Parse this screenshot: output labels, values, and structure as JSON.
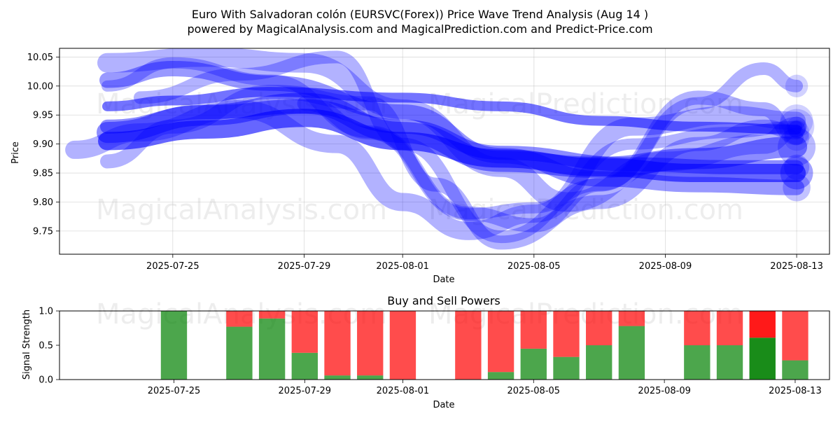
{
  "title_line1": "Euro With Salvadoran colón (EURSVC(Forex)) Price Wave Trend Analysis (Aug 14 )",
  "title_line2": "powered by MagicalAnalysis.com and MagicalPrediction.com and Predict-Price.com",
  "watermarks": [
    "MagicalAnalysis.com",
    "MagicalPrediction.com"
  ],
  "colors": {
    "wave": "#0000ff",
    "buy": "#008000",
    "sell": "#ff0000",
    "grid": "#b0b0b0"
  },
  "chart_data": [
    {
      "type": "line",
      "title": "",
      "xlabel": "Date",
      "ylabel": "Price",
      "xlim": [
        "2025-07-22",
        "2025-08-13"
      ],
      "ylim": [
        9.71,
        10.065
      ],
      "x_ticks": [
        "2025-07-25",
        "2025-07-29",
        "2025-08-01",
        "2025-08-05",
        "2025-08-09",
        "2025-08-13"
      ],
      "y_ticks": [
        9.75,
        9.8,
        9.85,
        9.9,
        9.95,
        10.0,
        10.05
      ],
      "grid": true,
      "series": [
        {
          "x": [
            "2025-07-23",
            "2025-07-25",
            "2025-07-28",
            "2025-08-01",
            "2025-08-04",
            "2025-08-07",
            "2025-08-10",
            "2025-08-13"
          ],
          "values": [
            9.965,
            9.975,
            9.99,
            9.98,
            9.965,
            9.94,
            9.93,
            9.925
          ],
          "width": 14,
          "opacity": 0.55
        },
        {
          "x": [
            "2025-07-23",
            "2025-07-26",
            "2025-07-29",
            "2025-08-01",
            "2025-08-04",
            "2025-08-07",
            "2025-08-10",
            "2025-08-13"
          ],
          "values": [
            9.905,
            9.925,
            9.945,
            9.905,
            9.875,
            9.86,
            9.85,
            9.85
          ],
          "width": 26,
          "opacity": 0.6
        },
        {
          "x": [
            "2025-07-23",
            "2025-07-26",
            "2025-07-29",
            "2025-08-01",
            "2025-08-04",
            "2025-08-08",
            "2025-08-11",
            "2025-08-13"
          ],
          "values": [
            9.93,
            9.955,
            9.965,
            9.93,
            9.885,
            9.865,
            9.86,
            9.86
          ],
          "width": 20,
          "opacity": 0.45
        },
        {
          "x": [
            "2025-07-23",
            "2025-07-25",
            "2025-07-28",
            "2025-08-01",
            "2025-08-04",
            "2025-08-07",
            "2025-08-10",
            "2025-08-13"
          ],
          "values": [
            10.01,
            10.03,
            10.005,
            9.955,
            9.88,
            9.84,
            9.83,
            9.825
          ],
          "width": 22,
          "opacity": 0.4
        },
        {
          "x": [
            "2025-07-23",
            "2025-07-26",
            "2025-07-29",
            "2025-08-01",
            "2025-08-04",
            "2025-08-07",
            "2025-08-10",
            "2025-08-13"
          ],
          "values": [
            9.92,
            9.95,
            9.97,
            9.92,
            9.87,
            9.86,
            9.875,
            9.895
          ],
          "width": 30,
          "opacity": 0.45
        },
        {
          "x": [
            "2025-07-23",
            "2025-07-25",
            "2025-07-28",
            "2025-07-31",
            "2025-08-03",
            "2025-08-05",
            "2025-08-08",
            "2025-08-11",
            "2025-08-13"
          ],
          "values": [
            10.0,
            10.04,
            10.01,
            9.92,
            9.78,
            9.79,
            9.9,
            9.92,
            9.93
          ],
          "width": 16,
          "opacity": 0.3
        },
        {
          "x": [
            "2025-07-23",
            "2025-07-26",
            "2025-07-29",
            "2025-08-01",
            "2025-08-04",
            "2025-08-06",
            "2025-08-09",
            "2025-08-12",
            "2025-08-13"
          ],
          "values": [
            10.04,
            10.05,
            10.04,
            9.96,
            9.86,
            9.8,
            9.87,
            9.9,
            9.93
          ],
          "width": 28,
          "opacity": 0.3
        },
        {
          "x": [
            "2025-07-22",
            "2025-07-24",
            "2025-07-27",
            "2025-07-30",
            "2025-08-01",
            "2025-08-03",
            "2025-08-05",
            "2025-08-08",
            "2025-08-11",
            "2025-08-13"
          ],
          "values": [
            9.89,
            9.92,
            9.96,
            9.9,
            9.8,
            9.75,
            9.78,
            9.93,
            9.95,
            9.94
          ],
          "width": 26,
          "opacity": 0.3
        },
        {
          "x": [
            "2025-07-23",
            "2025-07-25",
            "2025-07-28",
            "2025-07-31",
            "2025-08-02",
            "2025-08-04",
            "2025-08-07",
            "2025-08-10",
            "2025-08-12",
            "2025-08-13"
          ],
          "values": [
            9.87,
            9.93,
            9.99,
            9.97,
            9.83,
            9.73,
            9.8,
            9.9,
            9.93,
            9.92
          ],
          "width": 20,
          "opacity": 0.3
        },
        {
          "x": [
            "2025-07-24",
            "2025-07-27",
            "2025-07-30",
            "2025-08-01",
            "2025-08-04",
            "2025-08-07",
            "2025-08-10",
            "2025-08-12",
            "2025-08-13"
          ],
          "values": [
            9.98,
            10.02,
            10.05,
            9.9,
            9.74,
            9.83,
            9.97,
            10.03,
            10.0
          ],
          "width": 18,
          "opacity": 0.3
        },
        {
          "x": [
            "2025-07-29",
            "2025-07-31",
            "2025-08-03",
            "2025-08-05",
            "2025-08-07",
            "2025-08-10",
            "2025-08-12",
            "2025-08-13"
          ],
          "values": [
            9.97,
            9.92,
            9.78,
            9.76,
            9.83,
            9.98,
            9.96,
            9.91
          ],
          "width": 20,
          "opacity": 0.3
        }
      ]
    },
    {
      "type": "bar",
      "title": "Buy and Sell Powers",
      "xlabel": "Date",
      "ylabel": "Signal Strength",
      "ylim": [
        0,
        1.0
      ],
      "x_ticks": [
        "2025-07-25",
        "2025-07-29",
        "2025-08-01",
        "2025-08-05",
        "2025-08-09",
        "2025-08-13"
      ],
      "y_ticks": [
        0.0,
        0.5,
        1.0
      ],
      "categories": [
        "2025-07-25",
        "2025-07-27",
        "2025-07-28",
        "2025-07-29",
        "2025-07-30",
        "2025-07-31",
        "2025-08-01",
        "2025-08-03",
        "2025-08-04",
        "2025-08-05",
        "2025-08-06",
        "2025-08-07",
        "2025-08-08",
        "2025-08-10",
        "2025-08-11",
        "2025-08-12",
        "2025-08-13"
      ],
      "series": [
        {
          "values": [
            1.0,
            0.77,
            0.89,
            0.39,
            0.06,
            0.06,
            0.0,
            0.0,
            0.11,
            0.45,
            0.33,
            0.5,
            0.78,
            0.5,
            0.5,
            0.61,
            0.28
          ]
        },
        {
          "values": [
            0.0,
            0.23,
            0.11,
            0.61,
            0.94,
            0.94,
            1.0,
            1.0,
            0.89,
            0.55,
            0.67,
            0.5,
            0.22,
            0.5,
            0.5,
            0.39,
            0.72
          ]
        }
      ],
      "highlight": "2025-08-12"
    }
  ]
}
